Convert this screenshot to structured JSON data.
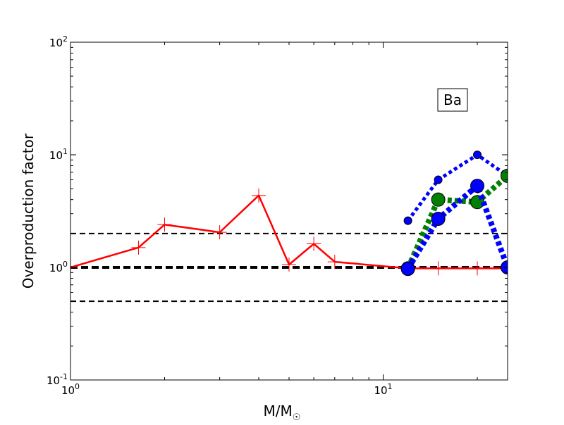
{
  "chart_data": {
    "type": "line",
    "xscale": "log",
    "yscale": "log",
    "xlim": [
      1,
      25
    ],
    "ylim": [
      0.1,
      100
    ],
    "xlabel": "M/M",
    "xlabel_sub": "☉",
    "ylabel": "Overproduction factor",
    "annotation": "Ba",
    "x_ticks": [
      {
        "value": 1,
        "base": "10",
        "exp": "0"
      },
      {
        "value": 10,
        "base": "10",
        "exp": "1"
      }
    ],
    "y_ticks": [
      {
        "value": 0.1,
        "base": "10",
        "exp": "-1"
      },
      {
        "value": 1,
        "base": "10",
        "exp": "0"
      },
      {
        "value": 10,
        "base": "10",
        "exp": "1"
      },
      {
        "value": 100,
        "base": "10",
        "exp": "2"
      }
    ],
    "reference_lines": [
      {
        "y": 2.0,
        "style": "dashed",
        "width": "thin"
      },
      {
        "y": 1.0,
        "style": "dashed",
        "width": "thick"
      },
      {
        "y": 0.5,
        "style": "dashed",
        "width": "thin"
      }
    ],
    "series": [
      {
        "color": "#ff0000",
        "line": "solid",
        "marker": "plus",
        "x": [
          1.0,
          1.65,
          2.0,
          3.0,
          4.0,
          5.0,
          6.0,
          7.0,
          12.0,
          15.0,
          20.0,
          25.0
        ],
        "y": [
          1.0,
          1.5,
          2.4,
          2.05,
          4.35,
          1.06,
          1.62,
          1.12,
          0.98,
          0.98,
          0.98,
          0.98
        ]
      },
      {
        "color": "#0000ff",
        "line": "dotted",
        "marker": "circle",
        "marker_size": "small",
        "x": [
          12.0,
          15.0,
          20.0,
          25.0
        ],
        "y": [
          2.6,
          6.0,
          10.0,
          6.5
        ]
      },
      {
        "color": "#008000",
        "line": "dotted",
        "marker": "circle",
        "marker_size": "large",
        "x": [
          12.0,
          15.0,
          20.0,
          25.0
        ],
        "y": [
          0.98,
          4.0,
          3.8,
          6.5
        ]
      },
      {
        "color": "#0000ff",
        "line": "dotted",
        "marker": "circle",
        "marker_size": "large",
        "x": [
          12.0,
          15.0,
          20.0,
          25.0
        ],
        "y": [
          0.97,
          2.7,
          5.3,
          1.0
        ]
      }
    ]
  }
}
